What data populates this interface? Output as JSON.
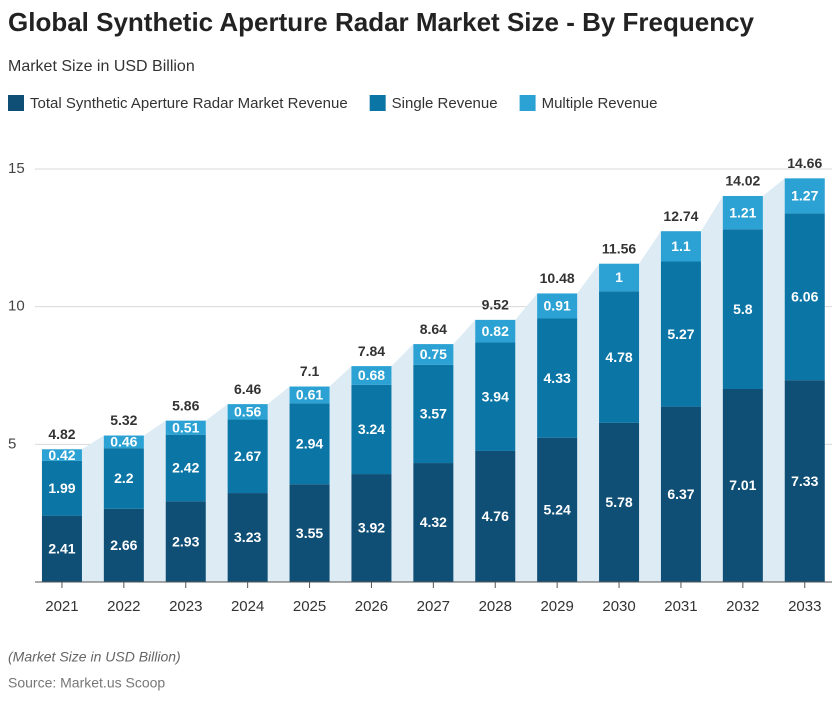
{
  "chart_data": {
    "type": "stacked-bar",
    "title": "Global Synthetic Aperture Radar Market Size - By Frequency",
    "subtitle": "Market Size in USD Billion",
    "note": "(Market Size in USD Billion)",
    "source": "Source: Market.us Scoop",
    "categories": [
      "2021",
      "2022",
      "2023",
      "2024",
      "2025",
      "2026",
      "2027",
      "2028",
      "2029",
      "2030",
      "2031",
      "2032",
      "2033"
    ],
    "series": [
      {
        "name": "Total Synthetic Aperture Radar Market Revenue",
        "color": "#0f4e75",
        "values": [
          2.41,
          2.66,
          2.93,
          3.23,
          3.55,
          3.92,
          4.32,
          4.76,
          5.24,
          5.78,
          6.37,
          7.01,
          7.33
        ]
      },
      {
        "name": "Single Revenue",
        "color": "#0b76a6",
        "values": [
          1.99,
          2.2,
          2.42,
          2.67,
          2.94,
          3.24,
          3.57,
          3.94,
          4.33,
          4.78,
          5.27,
          5.8,
          6.06
        ]
      },
      {
        "name": "Multiple Revenue",
        "color": "#2ba2d3",
        "values": [
          0.42,
          0.46,
          0.51,
          0.56,
          0.61,
          0.68,
          0.75,
          0.82,
          0.91,
          1.0,
          1.1,
          1.21,
          1.27
        ]
      }
    ],
    "totals": [
      4.82,
      5.32,
      5.86,
      6.46,
      7.1,
      7.84,
      8.64,
      9.52,
      10.48,
      11.56,
      12.74,
      14.02,
      14.66
    ],
    "ylim": [
      0,
      15
    ],
    "yticks": [
      5,
      10,
      15
    ],
    "grid": true,
    "area_color": "#dcebf4"
  }
}
